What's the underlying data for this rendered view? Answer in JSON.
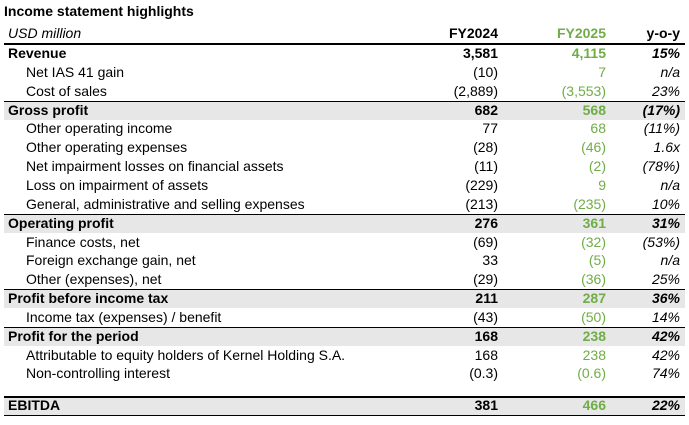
{
  "header": {
    "title": "Income statement highlights"
  },
  "table": {
    "columns": [
      "USD million",
      "FY2024",
      "FY2025",
      "y-o-y"
    ],
    "rows": [
      [
        "Revenue",
        "3,581",
        "4,115",
        "15%"
      ],
      [
        "Net IAS 41 gain",
        "(10)",
        "7",
        "n/a"
      ],
      [
        "Cost of sales",
        "(2,889)",
        "(3,553)",
        "23%"
      ],
      [
        "Gross profit",
        "682",
        "568",
        "(17%)"
      ],
      [
        "Other operating income",
        "77",
        "68",
        "(11%)"
      ],
      [
        "Other operating expenses",
        "(28)",
        "(46)",
        "1.6x"
      ],
      [
        "Net impairment losses on financial assets",
        "(11)",
        "(2)",
        "(78%)"
      ],
      [
        "Loss on impairment of assets",
        "(229)",
        "9",
        "n/a"
      ],
      [
        "General, administrative and selling expenses",
        "(213)",
        "(235)",
        "10%"
      ],
      [
        "Operating profit",
        "276",
        "361",
        "31%"
      ],
      [
        "Finance costs, net",
        "(69)",
        "(32)",
        "(53%)"
      ],
      [
        "Foreign exchange gain, net",
        "33",
        "(5)",
        "n/a"
      ],
      [
        "Other (expenses), net",
        "(29)",
        "(36)",
        "25%"
      ],
      [
        "Profit before income tax",
        "211",
        "287",
        "36%"
      ],
      [
        "Income tax (expenses) / benefit",
        "(43)",
        "(50)",
        "14%"
      ],
      [
        "Profit for the period",
        "168",
        "238",
        "42%"
      ],
      [
        "Attributable to equity holders of Kernel Holding S.A.",
        "168",
        "238",
        "42%"
      ],
      [
        "Non-controlling interest",
        "(0.3)",
        "(0.6)",
        "74%"
      ],
      [
        "EBITDA",
        "381",
        "466",
        "22%"
      ]
    ]
  }
}
